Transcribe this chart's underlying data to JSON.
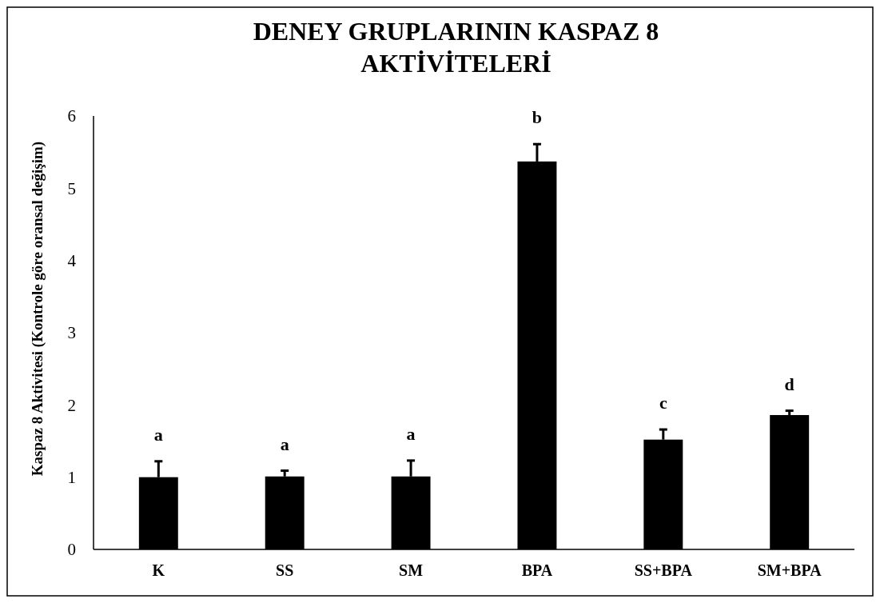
{
  "chart_data": {
    "type": "bar",
    "title": "DENEY GRUPLARININ KASPAZ 8\nAKTİVİTELERİ",
    "ylabel": "Kaspaz 8 Aktivitesi (Kontrole göre oransal değişim)",
    "categories": [
      "K",
      "SS",
      "SM",
      "BPA",
      "SS+BPA",
      "SM+BPA"
    ],
    "values": [
      1.0,
      1.01,
      1.01,
      5.37,
      1.52,
      1.86
    ],
    "errors": [
      0.22,
      0.08,
      0.22,
      0.24,
      0.14,
      0.06
    ],
    "color": "#000000",
    "ylim": [
      0,
      6
    ],
    "yticks": [
      0,
      1,
      2,
      3,
      4,
      5,
      6
    ],
    "grid": false,
    "annotations": [
      "a",
      "a",
      "a",
      "b",
      "c",
      "d"
    ]
  }
}
